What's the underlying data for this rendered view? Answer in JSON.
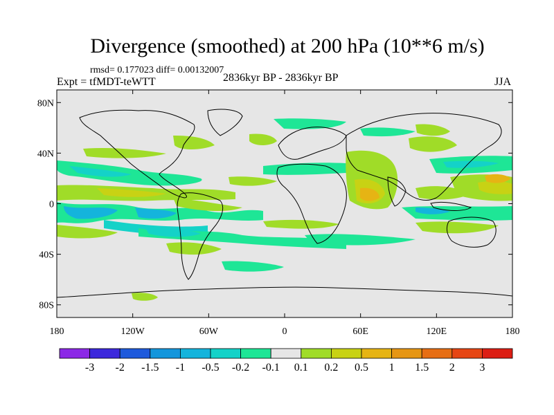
{
  "title": "Divergence (smoothed) at 200 hPa (10**6 m/s)",
  "stats": "rmsd= 0.177023  diff= 0.00132007",
  "experiment": "Expt = tfMDT-teWTT",
  "period": "2836kyr BP - 2836kyr BP",
  "season": "JJA",
  "map": {
    "lat_ticks": [
      "80N",
      "40N",
      "0",
      "40S",
      "80S"
    ],
    "lon_ticks": [
      "180",
      "120W",
      "60W",
      "0",
      "60E",
      "120E",
      "180"
    ]
  },
  "colorbar": {
    "colors": [
      "#8c28e6",
      "#3c28dc",
      "#1e5adc",
      "#1496dc",
      "#14b4dc",
      "#14d2c8",
      "#1ee696",
      "#e6e6e6",
      "#a0dc28",
      "#c8d214",
      "#e6b414",
      "#e69614",
      "#e66e14",
      "#e64614",
      "#dc1e14"
    ],
    "labels": [
      "-3",
      "-2",
      "-1.5",
      "-1",
      "-0.5",
      "-0.2",
      "-0.1",
      "0.1",
      "0.2",
      "0.5",
      "1",
      "1.5",
      "2",
      "3"
    ]
  }
}
